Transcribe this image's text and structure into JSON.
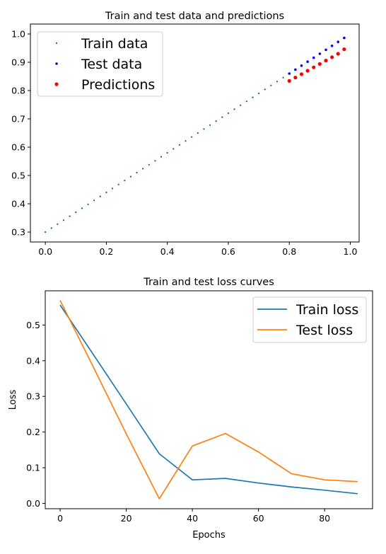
{
  "chart_data": [
    {
      "type": "scatter",
      "title": "Train and test data and predictions",
      "xlabel": "",
      "ylabel": "",
      "xlim": [
        -0.049,
        1.029
      ],
      "ylim": [
        0.265,
        1.035
      ],
      "xticks": [
        0.0,
        0.2,
        0.4,
        0.6,
        0.8,
        1.0
      ],
      "xtick_labels": [
        "0.0",
        "0.2",
        "0.4",
        "0.6",
        "0.8",
        "1.0"
      ],
      "yticks": [
        0.3,
        0.4,
        0.5,
        0.6,
        0.7,
        0.8,
        0.9,
        1.0
      ],
      "ytick_labels": [
        "0.3",
        "0.4",
        "0.5",
        "0.6",
        "0.7",
        "0.8",
        "0.9",
        "1.0"
      ],
      "grid": false,
      "legend_position": "top-left",
      "series": [
        {
          "name": "Train data",
          "color": "#008000",
          "marker_size": 1.1,
          "x": [
            0.0,
            0.02,
            0.04,
            0.06,
            0.08,
            0.1,
            0.12,
            0.14,
            0.16,
            0.18,
            0.2,
            0.22,
            0.24,
            0.26,
            0.28,
            0.3,
            0.32,
            0.34,
            0.36,
            0.38,
            0.4,
            0.42,
            0.44,
            0.46,
            0.48,
            0.5,
            0.52,
            0.54,
            0.56,
            0.58,
            0.6,
            0.62,
            0.64,
            0.66,
            0.68,
            0.7,
            0.72,
            0.74,
            0.76,
            0.78
          ],
          "y": [
            0.3,
            0.314,
            0.328,
            0.342,
            0.356,
            0.37,
            0.384,
            0.398,
            0.412,
            0.426,
            0.44,
            0.454,
            0.468,
            0.482,
            0.496,
            0.51,
            0.524,
            0.538,
            0.552,
            0.566,
            0.58,
            0.594,
            0.608,
            0.622,
            0.636,
            0.65,
            0.664,
            0.678,
            0.692,
            0.706,
            0.72,
            0.734,
            0.748,
            0.762,
            0.776,
            0.79,
            0.804,
            0.818,
            0.832,
            0.846
          ]
        },
        {
          "name": "Test data",
          "color": "#0000ff",
          "marker_size": 1.8,
          "x": [
            0.8,
            0.82,
            0.84,
            0.86,
            0.88,
            0.9,
            0.92,
            0.94,
            0.96,
            0.98
          ],
          "y": [
            0.86,
            0.874,
            0.888,
            0.902,
            0.916,
            0.93,
            0.944,
            0.958,
            0.972,
            0.986
          ]
        },
        {
          "name": "Predictions",
          "color": "#ff0000",
          "marker_size": 2.6,
          "x": [
            0.8,
            0.82,
            0.84,
            0.86,
            0.88,
            0.9,
            0.92,
            0.94,
            0.96,
            0.98
          ],
          "y": [
            0.834,
            0.846,
            0.858,
            0.87,
            0.882,
            0.894,
            0.906,
            0.918,
            0.93,
            0.946
          ]
        }
      ]
    },
    {
      "type": "line",
      "title": "Train and test loss curves",
      "xlabel": "Epochs",
      "ylabel": "Loss",
      "xlim": [
        -4.5,
        94.5
      ],
      "ylim": [
        -0.015,
        0.596
      ],
      "xticks": [
        0,
        20,
        40,
        60,
        80
      ],
      "xtick_labels": [
        "0",
        "20",
        "40",
        "60",
        "80"
      ],
      "yticks": [
        0.0,
        0.1,
        0.2,
        0.3,
        0.4,
        0.5
      ],
      "ytick_labels": [
        "0.0",
        "0.1",
        "0.2",
        "0.3",
        "0.4",
        "0.5"
      ],
      "grid": false,
      "legend_position": "top-right",
      "series": [
        {
          "name": "Train loss",
          "color": "#1f77b4",
          "x": [
            0,
            10,
            20,
            30,
            40,
            50,
            60,
            70,
            80,
            90
          ],
          "y": [
            0.556,
            0.418,
            0.279,
            0.139,
            0.066,
            0.07,
            0.057,
            0.046,
            0.037,
            0.027
          ]
        },
        {
          "name": "Test loss",
          "color": "#ff7f0e",
          "x": [
            0,
            10,
            20,
            30,
            40,
            50,
            60,
            70,
            80,
            90
          ],
          "y": [
            0.569,
            0.383,
            0.195,
            0.013,
            0.161,
            0.196,
            0.144,
            0.083,
            0.066,
            0.061
          ]
        }
      ]
    }
  ]
}
